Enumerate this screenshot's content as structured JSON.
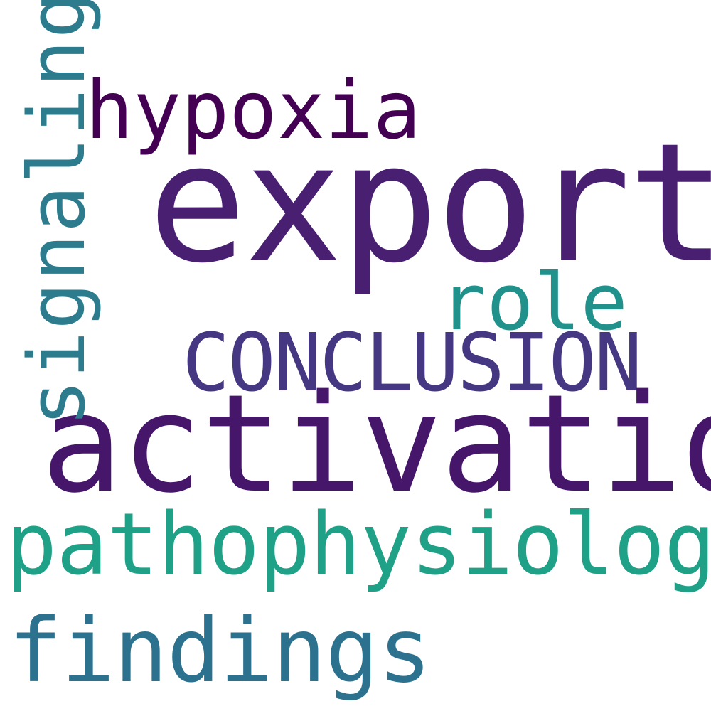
{
  "words": {
    "export": {
      "text": "export",
      "color": "#481f71"
    },
    "activation": {
      "text": "activation",
      "color": "#46166b"
    },
    "pathophysiology": {
      "text": "pathophysiology",
      "color": "#1fa187"
    },
    "findings": {
      "text": "findings",
      "color": "#2c728e"
    },
    "conclusion": {
      "text": "CONCLUSION",
      "color": "#453781"
    },
    "role": {
      "text": "role",
      "color": "#21918c"
    },
    "hypoxia": {
      "text": "hypoxia",
      "color": "#440154"
    },
    "signaling": {
      "text": "signaling",
      "color": "#2c7c8e"
    }
  }
}
